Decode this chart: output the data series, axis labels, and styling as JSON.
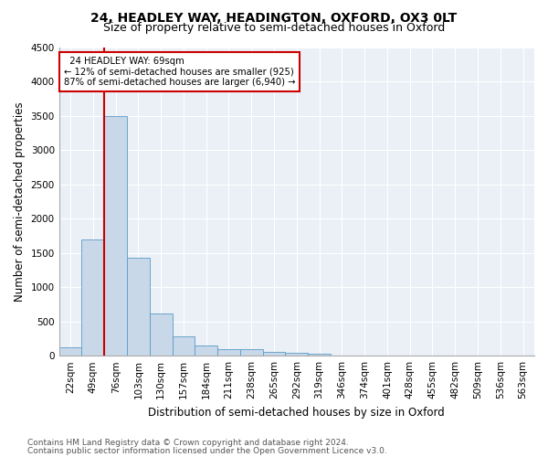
{
  "title_line1": "24, HEADLEY WAY, HEADINGTON, OXFORD, OX3 0LT",
  "title_line2": "Size of property relative to semi-detached houses in Oxford",
  "xlabel": "Distribution of semi-detached houses by size in Oxford",
  "ylabel": "Number of semi-detached properties",
  "categories": [
    "22sqm",
    "49sqm",
    "76sqm",
    "103sqm",
    "130sqm",
    "157sqm",
    "184sqm",
    "211sqm",
    "238sqm",
    "265sqm",
    "292sqm",
    "319sqm",
    "346sqm",
    "374sqm",
    "401sqm",
    "428sqm",
    "455sqm",
    "482sqm",
    "509sqm",
    "536sqm",
    "563sqm"
  ],
  "values": [
    120,
    1700,
    3500,
    1430,
    610,
    280,
    155,
    100,
    90,
    55,
    45,
    30,
    0,
    0,
    0,
    0,
    0,
    0,
    0,
    0,
    0
  ],
  "bar_color": "#c8d8e8",
  "bar_edge_color": "#5a9bc8",
  "property_label": "24 HEADLEY WAY: 69sqm",
  "pct_smaller": "12%",
  "n_smaller": "925",
  "pct_larger": "87%",
  "n_larger": "6,940",
  "vline_position": 2,
  "vline_color": "#cc0000",
  "annotation_box_color": "#cc0000",
  "ylim": [
    0,
    4500
  ],
  "yticks": [
    0,
    500,
    1000,
    1500,
    2000,
    2500,
    3000,
    3500,
    4000,
    4500
  ],
  "bg_color": "#eaf0f6",
  "footer_line1": "Contains HM Land Registry data © Crown copyright and database right 2024.",
  "footer_line2": "Contains public sector information licensed under the Open Government Licence v3.0.",
  "title_fontsize": 10,
  "subtitle_fontsize": 9,
  "axis_label_fontsize": 8.5,
  "tick_fontsize": 7.5,
  "footer_fontsize": 6.5
}
